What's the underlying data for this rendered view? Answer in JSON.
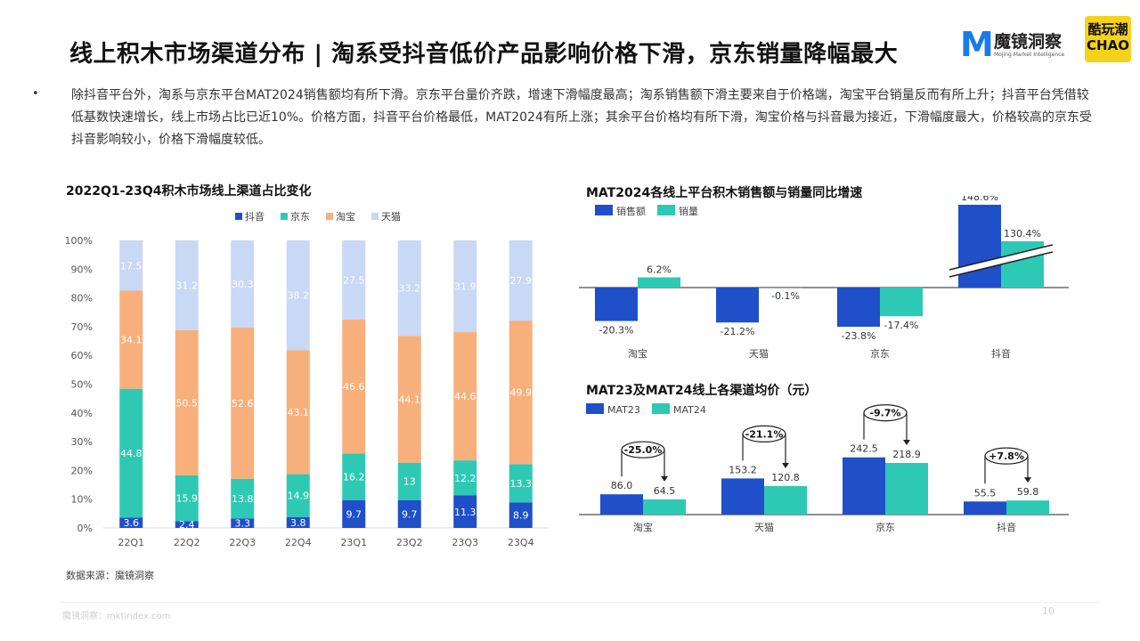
{
  "title": "线上积木市场渠道分布 | 淘系受抖音低价产品影响价格下滑，京东销量降幅最大",
  "logos": {
    "brand_mark": "M",
    "brand_name": "魔镜洞察",
    "brand_sub": "Mojing Market Intelligence",
    "partner_l1": "酷玩潮",
    "partner_l2": "CHAO"
  },
  "bullet": "•",
  "body": "除抖音平台外，淘系与京东平台MAT2024销售额均有所下滑。京东平台量价齐跌，增速下滑幅度最高；淘系销售额下滑主要来自于价格端，淘宝平台销量反而有所上升；抖音平台凭借较低基数快速增长，线上市场占比已近10%。价格方面，抖音平台价格最低，MAT2024有所上涨；其余平台价格均有所下滑，淘宝价格与抖音最为接近，下滑幅度最大，价格较高的京东受抖音影响较小，价格下滑幅度较低。",
  "source": "数据来源：魔镜洞察",
  "footer": "魔镜洞察：mktindex.com",
  "page_number": "10",
  "colors": {
    "douyin": "#1f4fc9",
    "jd": "#2ec9b5",
    "taobao": "#f7b07c",
    "tmall": "#c8d8f5",
    "sales": "#1f4fc9",
    "volume": "#2ec9b5"
  },
  "chart_data": [
    {
      "type": "bar",
      "stacked": true,
      "title": "2022Q1-23Q4积木市场线上渠道占比变化",
      "categories": [
        "22Q1",
        "22Q2",
        "22Q3",
        "22Q4",
        "23Q1",
        "23Q2",
        "23Q3",
        "23Q4"
      ],
      "series": [
        {
          "name": "抖音",
          "values": [
            3.6,
            2.4,
            3.3,
            3.8,
            9.7,
            9.7,
            11.3,
            8.9
          ]
        },
        {
          "name": "京东",
          "values": [
            44.8,
            15.9,
            13.8,
            14.9,
            16.2,
            13.0,
            12.2,
            13.3
          ]
        },
        {
          "name": "淘宝",
          "values": [
            34.1,
            50.5,
            52.6,
            43.1,
            46.6,
            44.1,
            44.6,
            49.9
          ]
        },
        {
          "name": "天猫",
          "values": [
            17.5,
            31.2,
            30.3,
            38.2,
            27.5,
            33.2,
            31.9,
            27.9
          ]
        }
      ],
      "yticks": [
        "0%",
        "10%",
        "20%",
        "30%",
        "40%",
        "50%",
        "60%",
        "70%",
        "80%",
        "90%",
        "100%"
      ],
      "ylim": [
        0,
        100
      ],
      "legend": "top"
    },
    {
      "type": "bar",
      "title": "MAT2024各线上平台积木销售额与销量同比增速",
      "categories": [
        "淘宝",
        "天猫",
        "京东",
        "抖音"
      ],
      "series": [
        {
          "name": "销售额",
          "values": [
            -20.3,
            -21.2,
            -23.8,
            148.6
          ]
        },
        {
          "name": "销量",
          "values": [
            6.2,
            -0.1,
            -17.4,
            130.4
          ]
        }
      ],
      "value_labels": [
        [
          "-20.3%",
          "-21.2%",
          "-23.8%",
          "148.6%"
        ],
        [
          "6.2%",
          "-0.1%",
          "-17.4%",
          "130.4%"
        ]
      ],
      "axis_break": true,
      "legend": "top-left"
    },
    {
      "type": "bar",
      "title": "MAT23及MAT24线上各渠道均价（元）",
      "categories": [
        "淘宝",
        "天猫",
        "京东",
        "抖音"
      ],
      "series": [
        {
          "name": "MAT23",
          "values": [
            86.0,
            153.2,
            242.5,
            55.5
          ]
        },
        {
          "name": "MAT24",
          "values": [
            64.5,
            120.8,
            218.9,
            59.8
          ]
        }
      ],
      "value_labels": [
        [
          "86.0",
          "153.2",
          "242.5",
          "55.5"
        ],
        [
          "64.5",
          "120.8",
          "218.9",
          "59.8"
        ]
      ],
      "changes": [
        "-25.0%",
        "-21.1%",
        "-9.7%",
        "+7.8%"
      ],
      "legend": "top-left"
    }
  ]
}
